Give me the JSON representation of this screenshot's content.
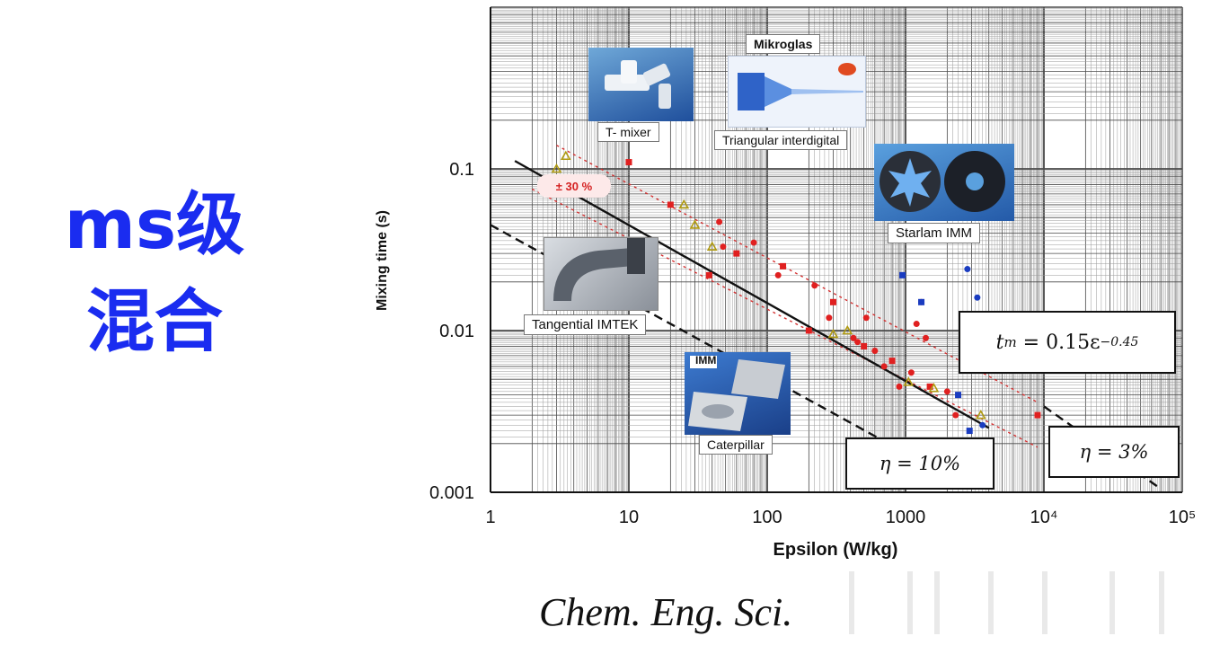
{
  "headline": {
    "line1": "ms级",
    "line2": "混合"
  },
  "citation": "Chem. Eng. Sci.",
  "insets": {
    "t_mixer": "T- mixer",
    "mikroglas": "Mikroglas",
    "triangular": "Triangular interdigital",
    "starlam": "Starlam IMM",
    "tangential": "Tangential IMTEK",
    "imm": "IMM",
    "caterpillar": "Caterpillar"
  },
  "annotations": {
    "formula_lhs": "t",
    "formula_sub": "m",
    "formula_rhs": "= 0.15ε",
    "formula_exp": "−0.45",
    "eta10": "η = 10%",
    "eta3": "η = 3%",
    "pct30": "± 30 %"
  },
  "chart_data": {
    "type": "scatter",
    "title": "",
    "xlabel": "Epsilon (W/kg)",
    "ylabel": "Mixing time (s)",
    "xscale": "log",
    "yscale": "log",
    "xlim": [
      1,
      100000
    ],
    "ylim": [
      0.001,
      1
    ],
    "x_tick_labels": [
      "1",
      "10",
      "100",
      "1000",
      "10⁴",
      "10⁵"
    ],
    "x_tick_values": [
      1,
      10,
      100,
      1000,
      10000,
      100000
    ],
    "y_tick_labels": [
      "0.001",
      "0.01",
      "0.1"
    ],
    "y_tick_values": [
      0.001,
      0.01,
      0.1
    ],
    "grid": true,
    "lines": [
      {
        "name": "fit",
        "style": "solid",
        "color": "#111111",
        "points": [
          [
            1.5,
            0.112
          ],
          [
            4000,
            0.0025
          ]
        ]
      },
      {
        "name": "eta10",
        "style": "dashed",
        "color": "#111111",
        "points": [
          [
            1,
            0.045
          ],
          [
            1000,
            0.00175
          ]
        ]
      },
      {
        "name": "eta3",
        "style": "dashed",
        "color": "#111111",
        "points": [
          [
            10000,
            0.0034
          ],
          [
            70000,
            0.00105
          ]
        ]
      },
      {
        "name": "band_upper",
        "style": "dotted",
        "color": "#d43030",
        "points": [
          [
            3,
            0.14
          ],
          [
            9000,
            0.0036
          ]
        ]
      },
      {
        "name": "band_lower",
        "style": "dotted",
        "color": "#d43030",
        "points": [
          [
            2,
            0.075
          ],
          [
            9000,
            0.0019
          ]
        ]
      }
    ],
    "series": [
      {
        "marker": "square",
        "color": "#e02020",
        "points": [
          [
            10,
            0.11
          ],
          [
            20,
            0.06
          ],
          [
            38,
            0.022
          ],
          [
            60,
            0.03
          ],
          [
            130,
            0.025
          ],
          [
            200,
            0.01
          ],
          [
            300,
            0.015
          ],
          [
            500,
            0.008
          ],
          [
            800,
            0.0065
          ],
          [
            1500,
            0.0045
          ],
          [
            9000,
            0.003
          ]
        ]
      },
      {
        "marker": "circle",
        "color": "#e02020",
        "points": [
          [
            45,
            0.047
          ],
          [
            48,
            0.033
          ],
          [
            80,
            0.035
          ],
          [
            120,
            0.022
          ],
          [
            220,
            0.019
          ],
          [
            280,
            0.012
          ],
          [
            420,
            0.009
          ],
          [
            450,
            0.0085
          ],
          [
            520,
            0.012
          ],
          [
            600,
            0.0075
          ],
          [
            700,
            0.006
          ],
          [
            900,
            0.0045
          ],
          [
            1100,
            0.0055
          ],
          [
            1200,
            0.011
          ],
          [
            1300,
            0.015
          ],
          [
            1400,
            0.009
          ],
          [
            2000,
            0.0042
          ],
          [
            2300,
            0.003
          ]
        ]
      },
      {
        "marker": "triangle",
        "color": "#b09a10",
        "points": [
          [
            3,
            0.1
          ],
          [
            3.5,
            0.12
          ],
          [
            25,
            0.06
          ],
          [
            30,
            0.045
          ],
          [
            40,
            0.033
          ],
          [
            300,
            0.0095
          ],
          [
            380,
            0.01
          ],
          [
            1050,
            0.0048
          ],
          [
            1600,
            0.0044
          ],
          [
            3500,
            0.003
          ]
        ]
      },
      {
        "marker": "square",
        "color": "#1a3cc0",
        "points": [
          [
            950,
            0.022
          ],
          [
            1300,
            0.015
          ],
          [
            2900,
            0.0024
          ],
          [
            2400,
            0.004
          ]
        ]
      },
      {
        "marker": "circle",
        "color": "#1a3cc0",
        "points": [
          [
            2800,
            0.024
          ],
          [
            3300,
            0.016
          ],
          [
            3600,
            0.0026
          ]
        ]
      }
    ]
  }
}
